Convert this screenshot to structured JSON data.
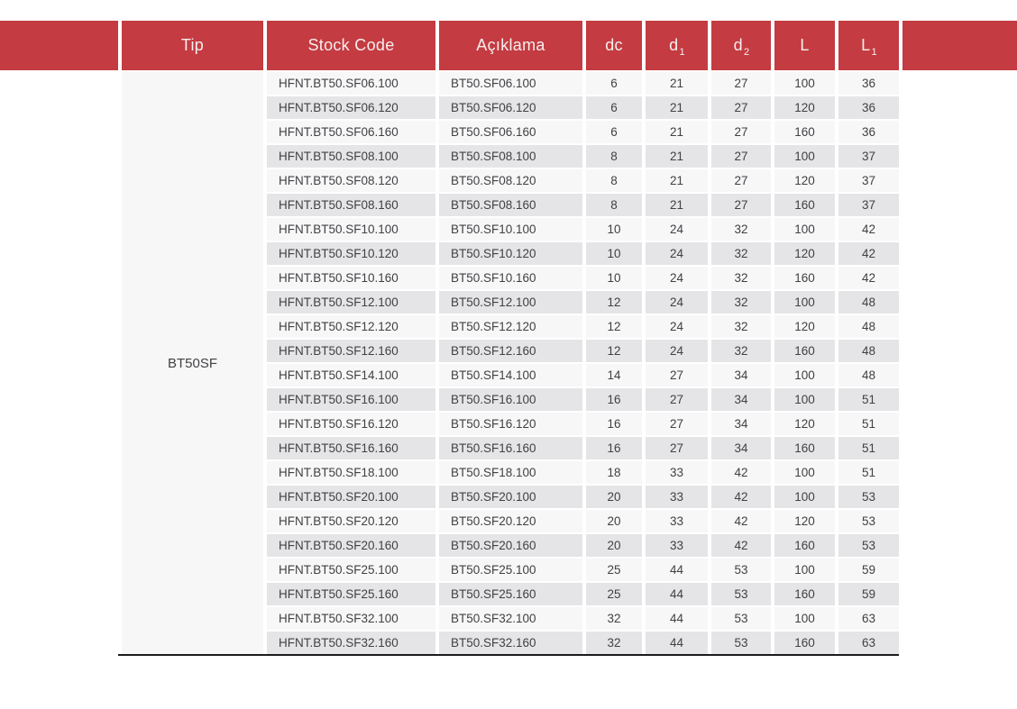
{
  "colors": {
    "header_bg": "#c43b41",
    "header_text": "#f6efef",
    "row_light": "#f7f7f8",
    "row_alt": "#e5e5e7",
    "text": "#414144",
    "bottom_border": "#1b1b1b"
  },
  "table": {
    "headers": [
      {
        "label": "Tip",
        "sub": ""
      },
      {
        "label": "Stock Code",
        "sub": ""
      },
      {
        "label": "Açıklama",
        "sub": ""
      },
      {
        "label": "dc",
        "sub": ""
      },
      {
        "label": "d",
        "sub": "1"
      },
      {
        "label": "d",
        "sub": "2"
      },
      {
        "label": "L",
        "sub": ""
      },
      {
        "label": "L",
        "sub": "1"
      }
    ],
    "tip_group": "BT50SF",
    "rows": [
      [
        "HFNT.BT50.SF06.100",
        "BT50.SF06.100",
        "6",
        "21",
        "27",
        "100",
        "36"
      ],
      [
        "HFNT.BT50.SF06.120",
        "BT50.SF06.120",
        "6",
        "21",
        "27",
        "120",
        "36"
      ],
      [
        "HFNT.BT50.SF06.160",
        "BT50.SF06.160",
        "6",
        "21",
        "27",
        "160",
        "36"
      ],
      [
        "HFNT.BT50.SF08.100",
        "BT50.SF08.100",
        "8",
        "21",
        "27",
        "100",
        "37"
      ],
      [
        "HFNT.BT50.SF08.120",
        "BT50.SF08.120",
        "8",
        "21",
        "27",
        "120",
        "37"
      ],
      [
        "HFNT.BT50.SF08.160",
        "BT50.SF08.160",
        "8",
        "21",
        "27",
        "160",
        "37"
      ],
      [
        "HFNT.BT50.SF10.100",
        "BT50.SF10.100",
        "10",
        "24",
        "32",
        "100",
        "42"
      ],
      [
        "HFNT.BT50.SF10.120",
        "BT50.SF10.120",
        "10",
        "24",
        "32",
        "120",
        "42"
      ],
      [
        "HFNT.BT50.SF10.160",
        "BT50.SF10.160",
        "10",
        "24",
        "32",
        "160",
        "42"
      ],
      [
        "HFNT.BT50.SF12.100",
        "BT50.SF12.100",
        "12",
        "24",
        "32",
        "100",
        "48"
      ],
      [
        "HFNT.BT50.SF12.120",
        "BT50.SF12.120",
        "12",
        "24",
        "32",
        "120",
        "48"
      ],
      [
        "HFNT.BT50.SF12.160",
        "BT50.SF12.160",
        "12",
        "24",
        "32",
        "160",
        "48"
      ],
      [
        "HFNT.BT50.SF14.100",
        "BT50.SF14.100",
        "14",
        "27",
        "34",
        "100",
        "48"
      ],
      [
        "HFNT.BT50.SF16.100",
        "BT50.SF16.100",
        "16",
        "27",
        "34",
        "100",
        "51"
      ],
      [
        "HFNT.BT50.SF16.120",
        "BT50.SF16.120",
        "16",
        "27",
        "34",
        "120",
        "51"
      ],
      [
        "HFNT.BT50.SF16.160",
        "BT50.SF16.160",
        "16",
        "27",
        "34",
        "160",
        "51"
      ],
      [
        "HFNT.BT50.SF18.100",
        "BT50.SF18.100",
        "18",
        "33",
        "42",
        "100",
        "51"
      ],
      [
        "HFNT.BT50.SF20.100",
        "BT50.SF20.100",
        "20",
        "33",
        "42",
        "100",
        "53"
      ],
      [
        "HFNT.BT50.SF20.120",
        "BT50.SF20.120",
        "20",
        "33",
        "42",
        "120",
        "53"
      ],
      [
        "HFNT.BT50.SF20.160",
        "BT50.SF20.160",
        "20",
        "33",
        "42",
        "160",
        "53"
      ],
      [
        "HFNT.BT50.SF25.100",
        "BT50.SF25.100",
        "25",
        "44",
        "53",
        "100",
        "59"
      ],
      [
        "HFNT.BT50.SF25.160",
        "BT50.SF25.160",
        "25",
        "44",
        "53",
        "160",
        "59"
      ],
      [
        "HFNT.BT50.SF32.100",
        "BT50.SF32.100",
        "32",
        "44",
        "53",
        "100",
        "63"
      ],
      [
        "HFNT.BT50.SF32.160",
        "BT50.SF32.160",
        "32",
        "44",
        "53",
        "160",
        "63"
      ]
    ]
  }
}
